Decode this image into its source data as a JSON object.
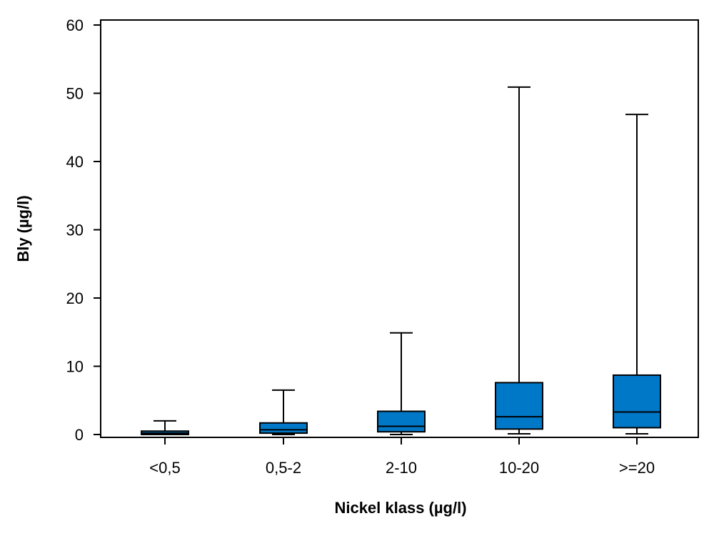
{
  "chart_data": {
    "type": "boxplot",
    "title": "",
    "xlabel": "Nickel klass (µg/l)",
    "ylabel": "Bly (µg/l)",
    "ylim": [
      0,
      60
    ],
    "yticks": [
      0,
      10,
      20,
      30,
      40,
      50,
      60
    ],
    "categories": [
      "<0,5",
      "0,5-2",
      "2-10",
      "10-20",
      ">=20"
    ],
    "boxes": [
      {
        "category": "<0,5",
        "min": 0,
        "q1": 0.0,
        "median": 0.2,
        "q3": 0.5,
        "max": 2.0
      },
      {
        "category": "0,5-2",
        "min": 0,
        "q1": 0.2,
        "median": 0.7,
        "q3": 1.7,
        "max": 6.5
      },
      {
        "category": "2-10",
        "min": 0,
        "q1": 0.4,
        "median": 1.2,
        "q3": 3.4,
        "max": 14.9
      },
      {
        "category": "10-20",
        "min": 0.1,
        "q1": 0.8,
        "median": 2.6,
        "q3": 7.6,
        "max": 50.9
      },
      {
        "category": ">=20",
        "min": 0.1,
        "q1": 1.0,
        "median": 3.3,
        "q3": 8.7,
        "max": 46.9
      }
    ],
    "box_color": "#0078c8",
    "grid": false,
    "legend": "none"
  }
}
